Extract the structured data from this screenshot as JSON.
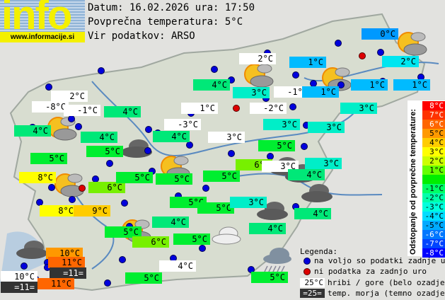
{
  "logo": {
    "word": "info",
    "url": "www.informacije.si"
  },
  "header": {
    "date_line": "Datum: 16.02.2026 ura: 17:50",
    "avg_line": "Povprečna temperatura: 5°C",
    "source_line": "Vir podatkov: ARSO"
  },
  "colors": {
    "white": "#ffffff",
    "dark": "#333333",
    "d-5": "#0099ff",
    "d-4": "#00bbff",
    "d-3": "#00e6f0",
    "d-2": "#00eec8",
    "d-1": "#00e878",
    "d0": "#00ee30",
    "d1": "#77f000",
    "d3": "#ffff00",
    "d4": "#ffcc00",
    "d5": "#ff9900",
    "d6": "#ff6600",
    "station_ok": "#0000dd",
    "station_missing": "#dd0000"
  },
  "stations": [
    {
      "temp": "2°C",
      "c": "white"
    },
    {
      "temp": "-8°C",
      "c": "white"
    },
    {
      "temp": "-1°C",
      "c": "white"
    },
    {
      "temp": "4°C",
      "c": "d-1"
    },
    {
      "temp": "4°C",
      "c": "d-1"
    },
    {
      "temp": "4°C",
      "c": "d-1"
    },
    {
      "temp": "5°C",
      "c": "d0"
    },
    {
      "temp": "5°C",
      "c": "d0"
    },
    {
      "temp": "8°C",
      "c": "d3"
    },
    {
      "temp": "6°C",
      "c": "d1"
    },
    {
      "temp": "5°C",
      "c": "d0"
    },
    {
      "temp": "8°C",
      "c": "d3"
    },
    {
      "temp": "9°C",
      "c": "d4"
    },
    {
      "temp": "5°C",
      "c": "d0"
    },
    {
      "temp": "6°C",
      "c": "d1"
    },
    {
      "temp": "10°C",
      "c": "d5"
    },
    {
      "temp": "11°C",
      "c": "d6"
    },
    {
      "temp": "=11=",
      "c": "dark"
    },
    {
      "temp": "10°C",
      "c": "white"
    },
    {
      "temp": "=11=",
      "c": "dark"
    },
    {
      "temp": "11°C",
      "c": "d6"
    },
    {
      "temp": "5°C",
      "c": "d0"
    },
    {
      "temp": "4°C",
      "c": "white"
    },
    {
      "temp": "4°C",
      "c": "d-1"
    },
    {
      "temp": "3°C",
      "c": "d-2"
    },
    {
      "temp": "2°C",
      "c": "white"
    },
    {
      "temp": "1°C",
      "c": "white"
    },
    {
      "temp": "-3°C",
      "c": "white"
    },
    {
      "temp": "4°C",
      "c": "d-1"
    },
    {
      "temp": "3°C",
      "c": "white"
    },
    {
      "temp": "-1°C",
      "c": "white"
    },
    {
      "temp": "-2°C",
      "c": "white"
    },
    {
      "temp": "1°C",
      "c": "d-4"
    },
    {
      "temp": "1°C",
      "c": "d-4"
    },
    {
      "temp": "3°C",
      "c": "d-2"
    },
    {
      "temp": "5°C",
      "c": "d0"
    },
    {
      "temp": "0°C",
      "c": "d-5"
    },
    {
      "temp": "2°C",
      "c": "d-3"
    },
    {
      "temp": "1°C",
      "c": "d-4"
    },
    {
      "temp": "1°C",
      "c": "d-4"
    },
    {
      "temp": "3°C",
      "c": "d-2"
    },
    {
      "temp": "3°C",
      "c": "d-2"
    },
    {
      "temp": "6°C",
      "c": "d1"
    },
    {
      "temp": "3°C",
      "c": "white"
    },
    {
      "temp": "3°C",
      "c": "d-2"
    },
    {
      "temp": "4°C",
      "c": "d-1"
    },
    {
      "temp": "5°C",
      "c": "d0"
    },
    {
      "temp": "5°C",
      "c": "d0"
    },
    {
      "temp": "5°C",
      "c": "d0"
    },
    {
      "temp": "5°C",
      "c": "d0"
    },
    {
      "temp": "3°C",
      "c": "d-2"
    },
    {
      "temp": "4°C",
      "c": "d-1"
    },
    {
      "temp": "4°C",
      "c": "d-1"
    },
    {
      "temp": "4°C",
      "c": "d-1"
    },
    {
      "temp": "5°C",
      "c": "d0"
    },
    {
      "temp": "5°C",
      "c": "d0"
    }
  ],
  "weather_icons": [
    "partly-cloudy",
    "partly-cloudy",
    "partly-cloudy",
    "partly-cloudy",
    "partly-cloudy",
    "partly-cloudy",
    "partly-cloudy",
    "overcast",
    "overcast",
    "overcast",
    "overcast",
    "overcast",
    "cloudy-light",
    "rain"
  ],
  "scale": {
    "title": "Odstopanje od povprečne temperature:",
    "rows": [
      {
        "label": "8°C",
        "color": "#ff0000",
        "fg": "#fff"
      },
      {
        "label": "7°C",
        "color": "#ff3300",
        "fg": "#fff"
      },
      {
        "label": "6°C",
        "color": "#ff6600",
        "fg": "#fff"
      },
      {
        "label": "5°C",
        "color": "#ff9900",
        "fg": "#000"
      },
      {
        "label": "4°C",
        "color": "#ffcc00",
        "fg": "#000"
      },
      {
        "label": "3°C",
        "color": "#ffff00",
        "fg": "#000"
      },
      {
        "label": "2°C",
        "color": "#ccff00",
        "fg": "#000"
      },
      {
        "label": "1°C",
        "color": "#66ff00",
        "fg": "#000"
      },
      {
        "label": "",
        "color": "#00ee00",
        "fg": "#000"
      },
      {
        "label": "-1°C",
        "color": "#00ff66",
        "fg": "#000"
      },
      {
        "label": "-2°C",
        "color": "#00ffaa",
        "fg": "#000"
      },
      {
        "label": "-3°C",
        "color": "#00ffdd",
        "fg": "#000"
      },
      {
        "label": "-4°C",
        "color": "#00ddff",
        "fg": "#000"
      },
      {
        "label": "-5°C",
        "color": "#00aaff",
        "fg": "#000"
      },
      {
        "label": "-6°C",
        "color": "#0077ff",
        "fg": "#fff"
      },
      {
        "label": "-7°C",
        "color": "#0044ff",
        "fg": "#fff"
      },
      {
        "label": "-8°C",
        "color": "#0000ff",
        "fg": "#fff"
      }
    ]
  },
  "legend": {
    "title": "Legenda:",
    "available": "na voljo so podatki zadnje ure",
    "missing": "ni podatka za zadnjo uro",
    "mountain_sample": "25°C",
    "mountain_text": "hribi / gore (belo ozadje)",
    "sea_sample": "=25=",
    "sea_text": "temp. morja (temno ozadje)"
  }
}
